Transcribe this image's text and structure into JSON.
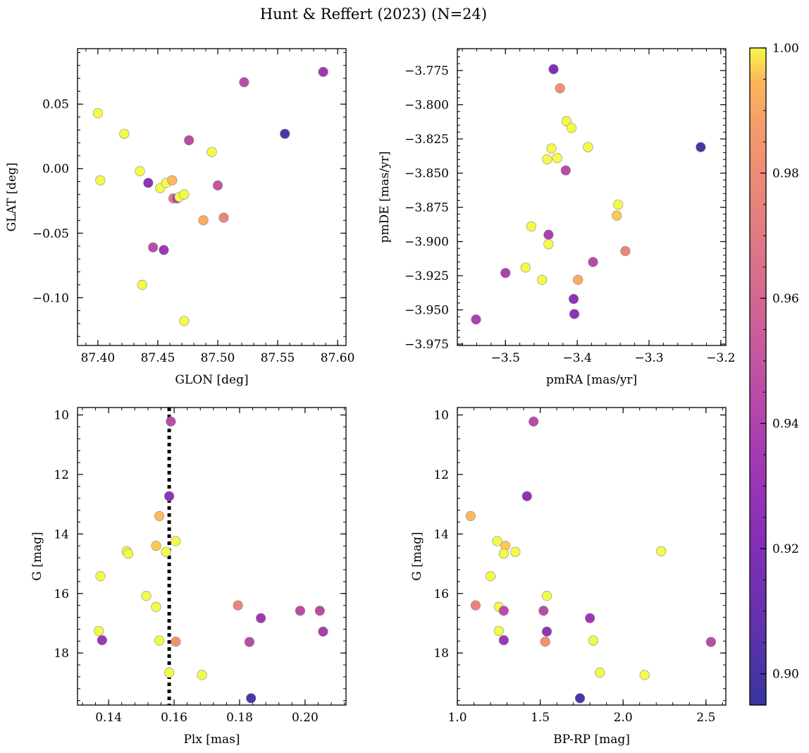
{
  "suptitle": "Hunt & Reffert (2023) (N=24)",
  "colorbar": {
    "range": [
      0.895,
      1.0
    ],
    "ticks": [
      0.9,
      0.92,
      0.94,
      0.96,
      0.98,
      1.0
    ],
    "tick_labels": [
      "0.90",
      "0.92",
      "0.94",
      "0.96",
      "0.98",
      "1.00"
    ],
    "colormap": "plasma"
  },
  "chart_data": [
    {
      "type": "scatter",
      "id": "sky",
      "xlabel": "GLON [deg]",
      "ylabel": "GLAT [deg]",
      "xlim": [
        87.383,
        87.607
      ],
      "ylim": [
        -0.137,
        0.093
      ],
      "xticks": [
        87.4,
        87.45,
        87.5,
        87.55,
        87.6
      ],
      "xtick_labels": [
        "87.40",
        "87.45",
        "87.50",
        "87.55",
        "87.60"
      ],
      "yticks": [
        -0.1,
        -0.05,
        0.0,
        0.05
      ],
      "ytick_labels": [
        "−0.10",
        "−0.05",
        "0.00",
        "0.05"
      ],
      "points": [
        {
          "x": 87.4,
          "y": 0.043,
          "c": 1.0
        },
        {
          "x": 87.422,
          "y": 0.027,
          "c": 1.0
        },
        {
          "x": 87.402,
          "y": -0.009,
          "c": 1.0
        },
        {
          "x": 87.435,
          "y": -0.002,
          "c": 1.0
        },
        {
          "x": 87.442,
          "y": -0.011,
          "c": 0.92
        },
        {
          "x": 87.452,
          "y": -0.015,
          "c": 1.0
        },
        {
          "x": 87.457,
          "y": -0.011,
          "c": 1.0
        },
        {
          "x": 87.462,
          "y": -0.009,
          "c": 0.98
        },
        {
          "x": 87.463,
          "y": -0.023,
          "c": 0.955
        },
        {
          "x": 87.466,
          "y": -0.023,
          "c": 0.93
        },
        {
          "x": 87.468,
          "y": -0.022,
          "c": 1.0
        },
        {
          "x": 87.472,
          "y": -0.02,
          "c": 1.0
        },
        {
          "x": 87.476,
          "y": 0.022,
          "c": 0.935
        },
        {
          "x": 87.495,
          "y": 0.013,
          "c": 1.0
        },
        {
          "x": 87.5,
          "y": -0.013,
          "c": 0.94
        },
        {
          "x": 87.488,
          "y": -0.04,
          "c": 0.975
        },
        {
          "x": 87.505,
          "y": -0.038,
          "c": 0.96
        },
        {
          "x": 87.446,
          "y": -0.061,
          "c": 0.935
        },
        {
          "x": 87.455,
          "y": -0.063,
          "c": 0.925
        },
        {
          "x": 87.437,
          "y": -0.09,
          "c": 1.0
        },
        {
          "x": 87.472,
          "y": -0.118,
          "c": 1.0
        },
        {
          "x": 87.522,
          "y": 0.067,
          "c": 0.935
        },
        {
          "x": 87.556,
          "y": 0.027,
          "c": 0.9
        },
        {
          "x": 87.588,
          "y": 0.075,
          "c": 0.925
        }
      ]
    },
    {
      "type": "scatter",
      "id": "pm",
      "xlabel": "pmRA [mas/yr]",
      "ylabel": "pmDE [mas/yr]",
      "xlim": [
        -3.567,
        -3.193
      ],
      "ylim": [
        -3.976,
        -3.759
      ],
      "xticks": [
        -3.5,
        -3.4,
        -3.3,
        -3.2
      ],
      "xtick_labels": [
        "−3.5",
        "−3.4",
        "−3.3",
        "−3.2"
      ],
      "yticks": [
        -3.975,
        -3.95,
        -3.925,
        -3.9,
        -3.875,
        -3.85,
        -3.825,
        -3.8,
        -3.775
      ],
      "ytick_labels": [
        "−3.975",
        "−3.950",
        "−3.925",
        "−3.900",
        "−3.875",
        "−3.850",
        "−3.825",
        "−3.800",
        "−3.775"
      ],
      "points": [
        {
          "x": -3.433,
          "y": -3.774,
          "c": 0.915
        },
        {
          "x": -3.424,
          "y": -3.788,
          "c": 0.965
        },
        {
          "x": -3.415,
          "y": -3.812,
          "c": 1.0
        },
        {
          "x": -3.408,
          "y": -3.817,
          "c": 1.0
        },
        {
          "x": -3.385,
          "y": -3.831,
          "c": 1.0
        },
        {
          "x": -3.436,
          "y": -3.832,
          "c": 1.0
        },
        {
          "x": -3.442,
          "y": -3.84,
          "c": 1.0
        },
        {
          "x": -3.428,
          "y": -3.839,
          "c": 1.0
        },
        {
          "x": -3.416,
          "y": -3.848,
          "c": 0.935
        },
        {
          "x": -3.228,
          "y": -3.831,
          "c": 0.9
        },
        {
          "x": -3.343,
          "y": -3.873,
          "c": 1.0
        },
        {
          "x": -3.345,
          "y": -3.881,
          "c": 0.985
        },
        {
          "x": -3.464,
          "y": -3.889,
          "c": 1.0
        },
        {
          "x": -3.44,
          "y": -3.895,
          "c": 0.93
        },
        {
          "x": -3.44,
          "y": -3.902,
          "c": 1.0
        },
        {
          "x": -3.333,
          "y": -3.907,
          "c": 0.96
        },
        {
          "x": -3.378,
          "y": -3.915,
          "c": 0.935
        },
        {
          "x": -3.472,
          "y": -3.919,
          "c": 1.0
        },
        {
          "x": -3.5,
          "y": -3.923,
          "c": 0.93
        },
        {
          "x": -3.449,
          "y": -3.928,
          "c": 1.0
        },
        {
          "x": -3.399,
          "y": -3.928,
          "c": 0.975
        },
        {
          "x": -3.405,
          "y": -3.942,
          "c": 0.92
        },
        {
          "x": -3.404,
          "y": -3.953,
          "c": 0.92
        },
        {
          "x": -3.541,
          "y": -3.957,
          "c": 0.93
        }
      ]
    },
    {
      "type": "scatter",
      "id": "plx",
      "xlabel": "Plx [mas]",
      "ylabel": "G [mag]",
      "xlim": [
        0.1305,
        0.2125
      ],
      "ylim": [
        19.75,
        9.75
      ],
      "y_inverted": true,
      "xticks": [
        0.14,
        0.16,
        0.18,
        0.2
      ],
      "xtick_labels": [
        "0.14",
        "0.16",
        "0.18",
        "0.20"
      ],
      "yticks": [
        10,
        12,
        14,
        16,
        18
      ],
      "ytick_labels": [
        "10",
        "12",
        "14",
        "16",
        "18"
      ],
      "vline": {
        "x": 0.1585,
        "style": "dotted",
        "color": "#000000"
      },
      "points": [
        {
          "x": 0.159,
          "y": 10.22,
          "c": 0.935
        },
        {
          "x": 0.1585,
          "y": 12.73,
          "c": 0.92
        },
        {
          "x": 0.1555,
          "y": 13.4,
          "c": 0.98
        },
        {
          "x": 0.1605,
          "y": 14.24,
          "c": 1.0
        },
        {
          "x": 0.1545,
          "y": 14.4,
          "c": 0.985
        },
        {
          "x": 0.1455,
          "y": 14.58,
          "c": 1.0
        },
        {
          "x": 0.146,
          "y": 14.66,
          "c": 1.0
        },
        {
          "x": 0.1575,
          "y": 14.6,
          "c": 1.0
        },
        {
          "x": 0.1375,
          "y": 15.42,
          "c": 1.0
        },
        {
          "x": 0.1515,
          "y": 16.08,
          "c": 1.0
        },
        {
          "x": 0.1795,
          "y": 16.4,
          "c": 0.96
        },
        {
          "x": 0.1545,
          "y": 16.45,
          "c": 1.0
        },
        {
          "x": 0.1985,
          "y": 16.58,
          "c": 0.935
        },
        {
          "x": 0.2045,
          "y": 16.58,
          "c": 0.935
        },
        {
          "x": 0.1865,
          "y": 16.83,
          "c": 0.925
        },
        {
          "x": 0.137,
          "y": 17.26,
          "c": 1.0
        },
        {
          "x": 0.2055,
          "y": 17.28,
          "c": 0.93
        },
        {
          "x": 0.138,
          "y": 17.57,
          "c": 0.925
        },
        {
          "x": 0.1555,
          "y": 17.58,
          "c": 1.0
        },
        {
          "x": 0.1605,
          "y": 17.62,
          "c": 0.965
        },
        {
          "x": 0.183,
          "y": 17.63,
          "c": 0.935
        },
        {
          "x": 0.1585,
          "y": 18.66,
          "c": 1.0
        },
        {
          "x": 0.1685,
          "y": 18.74,
          "c": 1.0
        },
        {
          "x": 0.1835,
          "y": 19.52,
          "c": 0.9
        }
      ]
    },
    {
      "type": "scatter",
      "id": "cmd",
      "xlabel": "BP-RP [mag]",
      "ylabel": "G [mag]",
      "xlim": [
        1.0,
        2.62
      ],
      "ylim": [
        19.75,
        9.75
      ],
      "y_inverted": true,
      "xticks": [
        1.0,
        1.5,
        2.0,
        2.5
      ],
      "xtick_labels": [
        "1.0",
        "1.5",
        "2.0",
        "2.5"
      ],
      "yticks": [
        10,
        12,
        14,
        16,
        18
      ],
      "ytick_labels": [
        "10",
        "12",
        "14",
        "16",
        "18"
      ],
      "points": [
        {
          "x": 1.46,
          "y": 10.22,
          "c": 0.935
        },
        {
          "x": 1.42,
          "y": 12.73,
          "c": 0.92
        },
        {
          "x": 1.08,
          "y": 13.4,
          "c": 0.98
        },
        {
          "x": 1.24,
          "y": 14.24,
          "c": 1.0
        },
        {
          "x": 1.29,
          "y": 14.4,
          "c": 0.985
        },
        {
          "x": 1.28,
          "y": 14.66,
          "c": 1.0
        },
        {
          "x": 1.35,
          "y": 14.6,
          "c": 1.0
        },
        {
          "x": 2.23,
          "y": 14.58,
          "c": 1.0
        },
        {
          "x": 1.2,
          "y": 15.42,
          "c": 1.0
        },
        {
          "x": 1.54,
          "y": 16.08,
          "c": 1.0
        },
        {
          "x": 1.11,
          "y": 16.4,
          "c": 0.96
        },
        {
          "x": 1.25,
          "y": 16.45,
          "c": 1.0
        },
        {
          "x": 1.28,
          "y": 16.58,
          "c": 0.935
        },
        {
          "x": 1.52,
          "y": 16.58,
          "c": 0.935
        },
        {
          "x": 1.8,
          "y": 16.83,
          "c": 0.925
        },
        {
          "x": 1.25,
          "y": 17.26,
          "c": 1.0
        },
        {
          "x": 1.54,
          "y": 17.28,
          "c": 0.92
        },
        {
          "x": 1.28,
          "y": 17.57,
          "c": 0.925
        },
        {
          "x": 1.82,
          "y": 17.58,
          "c": 1.0
        },
        {
          "x": 1.53,
          "y": 17.62,
          "c": 0.965
        },
        {
          "x": 2.53,
          "y": 17.63,
          "c": 0.935
        },
        {
          "x": 1.86,
          "y": 18.66,
          "c": 1.0
        },
        {
          "x": 2.13,
          "y": 18.74,
          "c": 1.0
        },
        {
          "x": 1.74,
          "y": 19.52,
          "c": 0.9
        }
      ]
    }
  ]
}
